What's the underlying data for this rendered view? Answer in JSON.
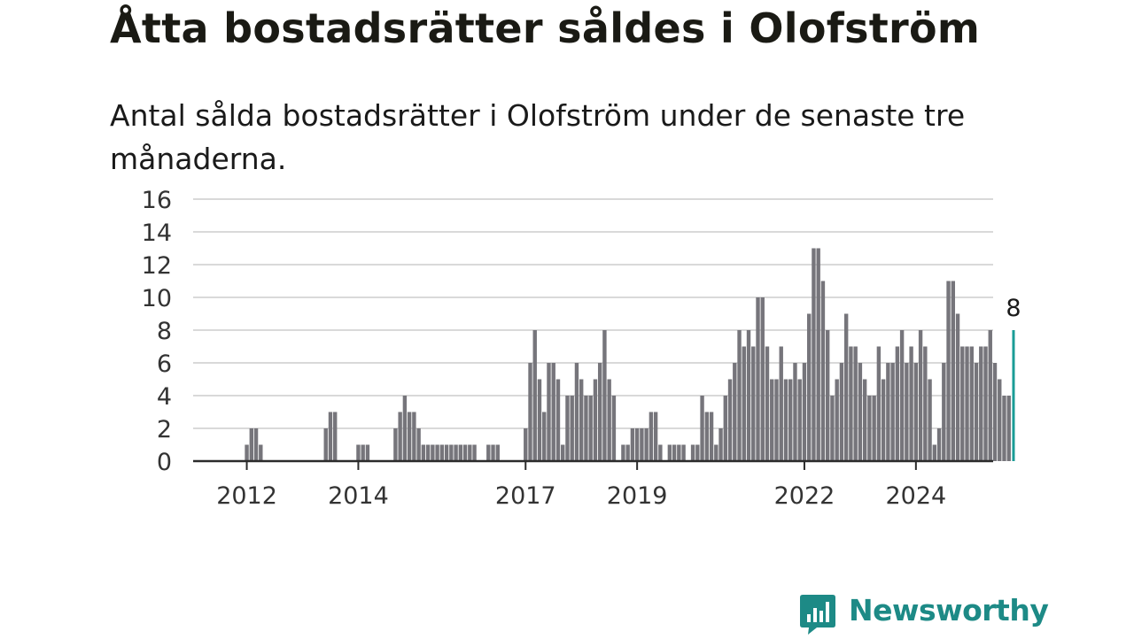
{
  "header": {
    "title": "Åtta bostadsrätter såldes i Olofström",
    "subtitle": "Antal sålda bostadsrätter i Olofström under de senaste tre månaderna."
  },
  "brand": {
    "name": "Newsworthy",
    "logo_icon": "bar-chart-speech-bubble-icon",
    "color": "#1d8a86"
  },
  "chart_data": {
    "type": "bar",
    "title": "",
    "xlabel": "",
    "ylabel": "",
    "ylim": [
      0,
      16
    ],
    "y_ticks": [
      0,
      2,
      4,
      6,
      8,
      10,
      12,
      14,
      16
    ],
    "x_start": "2011-05",
    "x_ticks": [
      {
        "label": "2012",
        "month": "2012-01"
      },
      {
        "label": "2014",
        "month": "2014-01"
      },
      {
        "label": "2017",
        "month": "2017-01"
      },
      {
        "label": "2019",
        "month": "2019-01"
      },
      {
        "label": "2022",
        "month": "2022-01"
      },
      {
        "label": "2024",
        "month": "2024-01"
      }
    ],
    "grid": true,
    "bar_color": "#76757b",
    "highlight_color": "#1a9c96",
    "highlight_label": "8",
    "values": [
      0,
      0,
      0,
      0,
      0,
      0,
      0,
      0,
      1,
      2,
      2,
      1,
      0,
      0,
      0,
      0,
      0,
      0,
      0,
      0,
      0,
      0,
      0,
      0,
      0,
      2,
      3,
      3,
      0,
      0,
      0,
      0,
      1,
      1,
      1,
      0,
      0,
      0,
      0,
      0,
      2,
      3,
      4,
      3,
      3,
      2,
      1,
      1,
      1,
      1,
      1,
      1,
      1,
      1,
      1,
      1,
      1,
      1,
      0,
      0,
      1,
      1,
      1,
      0,
      0,
      0,
      0,
      0,
      2,
      6,
      8,
      5,
      3,
      6,
      6,
      5,
      1,
      4,
      4,
      6,
      5,
      4,
      4,
      5,
      6,
      8,
      5,
      4,
      0,
      1,
      1,
      2,
      2,
      2,
      2,
      3,
      3,
      1,
      0,
      1,
      1,
      1,
      1,
      0,
      1,
      1,
      4,
      3,
      3,
      1,
      2,
      4,
      5,
      6,
      8,
      7,
      8,
      7,
      10,
      10,
      7,
      5,
      5,
      7,
      5,
      5,
      6,
      5,
      6,
      9,
      13,
      13,
      11,
      8,
      4,
      5,
      6,
      9,
      7,
      7,
      6,
      5,
      4,
      4,
      7,
      5,
      6,
      6,
      7,
      8,
      6,
      7,
      6,
      8,
      7,
      5,
      1,
      2,
      6,
      11,
      11,
      9,
      7,
      7,
      7,
      6,
      7,
      7,
      8,
      6,
      5,
      4,
      4,
      8
    ]
  }
}
